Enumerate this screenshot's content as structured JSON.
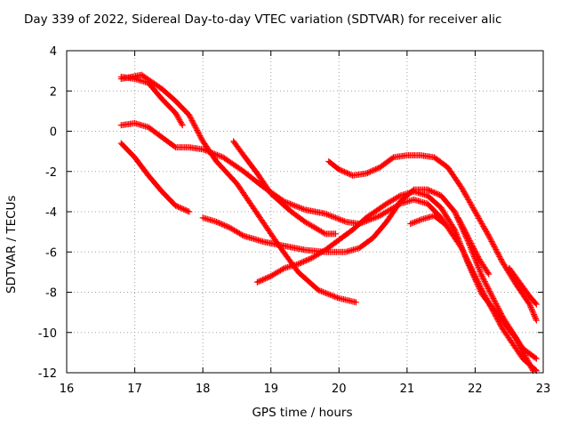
{
  "chart_data": {
    "type": "scatter",
    "title": "Day 339 of 2022, Sidereal Day-to-day VTEC variation (SDTVAR) for receiver alic",
    "xlabel": "GPS time / hours",
    "ylabel": "SDTVAR / TECUs",
    "xlim": [
      16,
      23
    ],
    "ylim": [
      -12,
      4
    ],
    "xticks": [
      "16",
      "17",
      "18",
      "19",
      "20",
      "21",
      "22",
      "23"
    ],
    "yticks": [
      "4",
      "2",
      "0",
      "-2",
      "-4",
      "-6",
      "-8",
      "-10",
      "-12"
    ],
    "grid": true,
    "marker": "plus",
    "color": "#ff0000",
    "series": [
      {
        "name": "track-1",
        "points": [
          [
            16.8,
            2.7
          ],
          [
            17.0,
            2.6
          ],
          [
            17.2,
            2.4
          ],
          [
            17.4,
            1.6
          ],
          [
            17.6,
            0.9
          ],
          [
            17.7,
            0.3
          ]
        ]
      },
      {
        "name": "track-2",
        "points": [
          [
            16.8,
            2.6
          ],
          [
            17.1,
            2.8
          ],
          [
            17.4,
            2.1
          ],
          [
            17.6,
            1.5
          ],
          [
            17.8,
            0.8
          ],
          [
            18.0,
            -0.5
          ],
          [
            18.2,
            -1.5
          ],
          [
            18.5,
            -2.6
          ],
          [
            18.8,
            -4.1
          ],
          [
            19.1,
            -5.6
          ],
          [
            19.4,
            -7.0
          ],
          [
            19.7,
            -7.9
          ],
          [
            20.0,
            -8.3
          ],
          [
            20.25,
            -8.5
          ]
        ]
      },
      {
        "name": "track-3",
        "points": [
          [
            16.8,
            0.3
          ],
          [
            17.0,
            0.4
          ],
          [
            17.2,
            0.2
          ],
          [
            17.4,
            -0.3
          ],
          [
            17.6,
            -0.8
          ],
          [
            17.8,
            -0.8
          ],
          [
            18.0,
            -0.9
          ],
          [
            18.3,
            -1.3
          ],
          [
            18.6,
            -2.0
          ],
          [
            18.9,
            -2.8
          ],
          [
            19.2,
            -3.5
          ],
          [
            19.5,
            -3.9
          ],
          [
            19.8,
            -4.1
          ],
          [
            20.1,
            -4.5
          ],
          [
            20.3,
            -4.6
          ],
          [
            20.6,
            -4.2
          ],
          [
            20.9,
            -3.6
          ],
          [
            21.1,
            -3.4
          ],
          [
            21.3,
            -3.6
          ],
          [
            21.5,
            -4.3
          ],
          [
            21.8,
            -5.8
          ],
          [
            22.1,
            -7.9
          ],
          [
            22.4,
            -9.8
          ],
          [
            22.7,
            -11.3
          ],
          [
            22.9,
            -11.9
          ]
        ]
      },
      {
        "name": "track-4",
        "points": [
          [
            16.8,
            -0.6
          ],
          [
            17.0,
            -1.3
          ],
          [
            17.2,
            -2.2
          ],
          [
            17.4,
            -3.0
          ],
          [
            17.6,
            -3.7
          ],
          [
            17.8,
            -4.0
          ]
        ]
      },
      {
        "name": "track-5",
        "points": [
          [
            18.0,
            -4.3
          ],
          [
            18.2,
            -4.5
          ],
          [
            18.4,
            -4.8
          ],
          [
            18.6,
            -5.2
          ],
          [
            18.9,
            -5.5
          ],
          [
            19.2,
            -5.7
          ],
          [
            19.5,
            -5.9
          ],
          [
            19.8,
            -6.0
          ],
          [
            20.1,
            -6.0
          ],
          [
            20.3,
            -5.8
          ],
          [
            20.5,
            -5.3
          ],
          [
            20.7,
            -4.5
          ],
          [
            20.9,
            -3.5
          ],
          [
            21.1,
            -2.9
          ],
          [
            21.3,
            -2.9
          ],
          [
            21.5,
            -3.2
          ],
          [
            21.7,
            -4.0
          ],
          [
            21.9,
            -5.5
          ],
          [
            22.1,
            -7.2
          ],
          [
            22.4,
            -9.2
          ],
          [
            22.7,
            -10.8
          ],
          [
            22.9,
            -11.3
          ]
        ]
      },
      {
        "name": "track-6",
        "points": [
          [
            18.45,
            -0.5
          ],
          [
            18.6,
            -1.2
          ],
          [
            18.8,
            -2.1
          ],
          [
            19.0,
            -3.1
          ],
          [
            19.3,
            -4.0
          ],
          [
            19.5,
            -4.5
          ],
          [
            19.8,
            -5.1
          ],
          [
            19.95,
            -5.1
          ]
        ]
      },
      {
        "name": "track-7",
        "points": [
          [
            18.8,
            -7.5
          ],
          [
            19.0,
            -7.2
          ],
          [
            19.2,
            -6.8
          ],
          [
            19.4,
            -6.6
          ],
          [
            19.6,
            -6.3
          ],
          [
            19.8,
            -5.9
          ],
          [
            20.0,
            -5.4
          ],
          [
            20.2,
            -4.9
          ],
          [
            20.4,
            -4.3
          ],
          [
            20.7,
            -3.6
          ],
          [
            20.9,
            -3.2
          ],
          [
            21.1,
            -3.0
          ],
          [
            21.3,
            -3.2
          ],
          [
            21.5,
            -3.8
          ],
          [
            21.7,
            -4.9
          ],
          [
            21.9,
            -6.6
          ],
          [
            22.1,
            -8.1
          ],
          [
            22.4,
            -9.4
          ],
          [
            22.6,
            -10.3
          ],
          [
            22.85,
            -11.9
          ]
        ]
      },
      {
        "name": "track-8",
        "points": [
          [
            19.85,
            -1.5
          ],
          [
            20.0,
            -1.9
          ],
          [
            20.2,
            -2.2
          ],
          [
            20.4,
            -2.1
          ],
          [
            20.6,
            -1.8
          ],
          [
            20.8,
            -1.3
          ],
          [
            21.0,
            -1.2
          ],
          [
            21.2,
            -1.2
          ],
          [
            21.4,
            -1.3
          ],
          [
            21.6,
            -1.8
          ],
          [
            21.8,
            -2.8
          ],
          [
            22.0,
            -4.0
          ],
          [
            22.2,
            -5.2
          ],
          [
            22.4,
            -6.5
          ],
          [
            22.6,
            -7.6
          ],
          [
            22.8,
            -8.6
          ],
          [
            22.9,
            -9.4
          ]
        ]
      },
      {
        "name": "track-9",
        "points": [
          [
            21.05,
            -4.6
          ],
          [
            21.2,
            -4.4
          ],
          [
            21.4,
            -4.2
          ],
          [
            21.55,
            -4.6
          ]
        ]
      },
      {
        "name": "track-10",
        "points": [
          [
            21.75,
            -4.3
          ],
          [
            21.9,
            -5.3
          ],
          [
            22.05,
            -6.3
          ],
          [
            22.2,
            -7.1
          ]
        ]
      },
      {
        "name": "track-11",
        "points": [
          [
            22.5,
            -6.8
          ],
          [
            22.65,
            -7.5
          ],
          [
            22.8,
            -8.2
          ],
          [
            22.9,
            -8.6
          ]
        ]
      }
    ]
  }
}
